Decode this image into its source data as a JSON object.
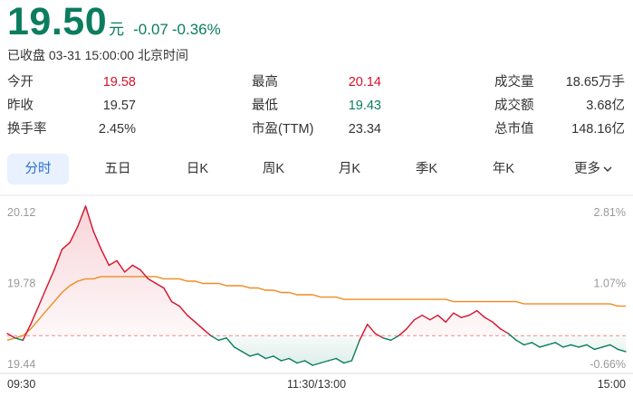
{
  "quote": {
    "price": "19.50",
    "unit": "元",
    "change": "-0.07",
    "change_pct": "-0.36%",
    "status": "已收盘 03-31 15:00:00 北京时间"
  },
  "stats": [
    [
      {
        "label": "今开",
        "value": "19.58",
        "color": "red"
      },
      {
        "label": "最高",
        "value": "20.14",
        "color": "red"
      },
      {
        "label": "成交量",
        "value": "18.65万手",
        "color": "dark"
      }
    ],
    [
      {
        "label": "昨收",
        "value": "19.57",
        "color": "dark"
      },
      {
        "label": "最低",
        "value": "19.43",
        "color": "green"
      },
      {
        "label": "成交额",
        "value": "3.68亿",
        "color": "dark"
      }
    ],
    [
      {
        "label": "换手率",
        "value": "2.45%",
        "color": "dark"
      },
      {
        "label": "市盈(TTM)",
        "value": "23.34",
        "color": "dark"
      },
      {
        "label": "总市值",
        "value": "148.16亿",
        "color": "dark"
      }
    ]
  ],
  "tabs": [
    "分时",
    "五日",
    "日K",
    "周K",
    "月K",
    "季K",
    "年K",
    "更多"
  ],
  "active_tab": "分时",
  "colors": {
    "up": "#d4112b",
    "down": "#0b7d5e",
    "avg": "#f08c1e",
    "accent": "#2a6fd6"
  },
  "chart_data": {
    "type": "line",
    "prev_close": 19.57,
    "ylim": [
      19.44,
      20.12
    ],
    "y_ticks_left": [
      "20.12",
      "19.78",
      "19.44"
    ],
    "y_ticks_right": [
      "2.81%",
      "1.07%",
      "-0.66%"
    ],
    "x_ticks": [
      "09:30",
      "11:30/13:00",
      "15:00"
    ],
    "series": [
      {
        "values": [
          19.58,
          19.56,
          19.55,
          19.62,
          19.7,
          19.78,
          19.86,
          19.95,
          19.98,
          20.05,
          20.14,
          20.03,
          19.95,
          19.88,
          19.9,
          19.85,
          19.88,
          19.86,
          19.82,
          19.8,
          19.78,
          19.72,
          19.7,
          19.66,
          19.63,
          19.6,
          19.57,
          19.55,
          19.56,
          19.52,
          19.5,
          19.48,
          19.49,
          19.47,
          19.48,
          19.46,
          19.47,
          19.45,
          19.46,
          19.44,
          19.45,
          19.46,
          19.47,
          19.45,
          19.46,
          19.55,
          19.62,
          19.58,
          19.56,
          19.55,
          19.57,
          19.6,
          19.64,
          19.66,
          19.64,
          19.66,
          19.63,
          19.67,
          19.65,
          19.66,
          19.68,
          19.65,
          19.63,
          19.6,
          19.58,
          19.55,
          19.53,
          19.54,
          19.52,
          19.53,
          19.54,
          19.52,
          19.53,
          19.52,
          19.53,
          19.51,
          19.52,
          19.53,
          19.51,
          19.5
        ]
      },
      {
        "values": [
          19.55,
          19.56,
          19.57,
          19.6,
          19.64,
          19.68,
          19.72,
          19.76,
          19.79,
          19.81,
          19.82,
          19.82,
          19.83,
          19.83,
          19.83,
          19.83,
          19.83,
          19.83,
          19.83,
          19.83,
          19.82,
          19.82,
          19.82,
          19.81,
          19.81,
          19.8,
          19.8,
          19.8,
          19.79,
          19.79,
          19.79,
          19.78,
          19.78,
          19.77,
          19.77,
          19.76,
          19.76,
          19.75,
          19.75,
          19.75,
          19.74,
          19.74,
          19.74,
          19.73,
          19.73,
          19.73,
          19.73,
          19.73,
          19.73,
          19.73,
          19.73,
          19.73,
          19.73,
          19.73,
          19.73,
          19.73,
          19.73,
          19.72,
          19.72,
          19.72,
          19.72,
          19.72,
          19.72,
          19.72,
          19.72,
          19.72,
          19.71,
          19.71,
          19.71,
          19.71,
          19.71,
          19.71,
          19.71,
          19.71,
          19.71,
          19.71,
          19.71,
          19.71,
          19.7,
          19.7
        ]
      }
    ]
  }
}
